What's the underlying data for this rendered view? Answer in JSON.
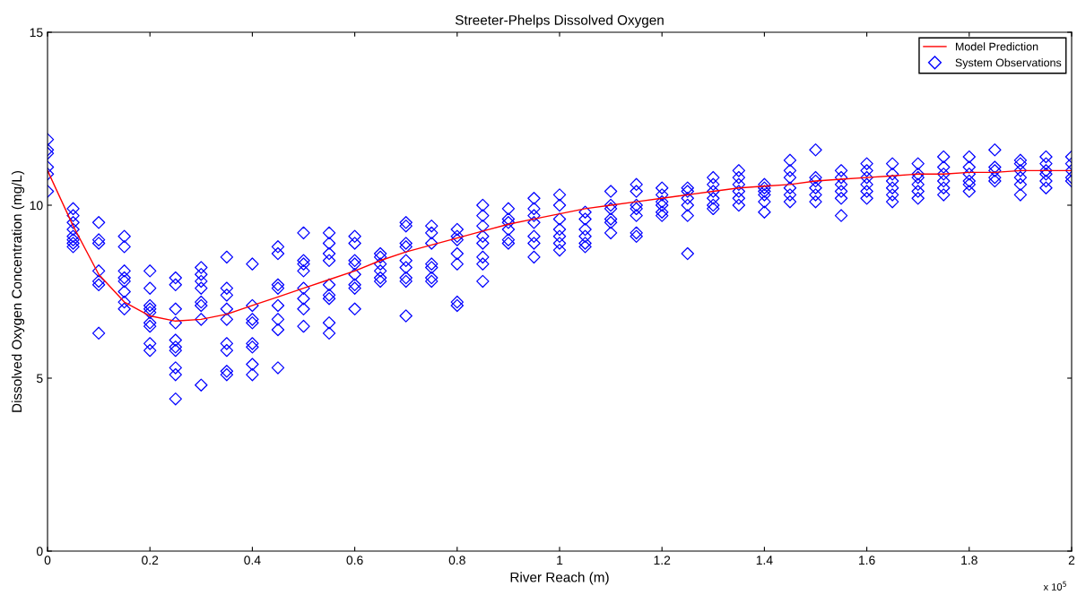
{
  "chart_data": {
    "type": "scatter",
    "title": "Streeter-Phelps Dissolved Oxygen",
    "xlabel": "River Reach (m)",
    "ylabel": "Dissolved Oxygen Concentration (mg/L)",
    "xlim": [
      0,
      2
    ],
    "ylim": [
      0,
      15
    ],
    "xticks": [
      0,
      0.2,
      0.4,
      0.6,
      0.8,
      1,
      1.2,
      1.4,
      1.6,
      1.8,
      2
    ],
    "yticks": [
      0,
      5,
      10,
      15
    ],
    "annotations": [
      "x 10$^{5}$"
    ],
    "grid": false,
    "legend": "top right",
    "series": [
      {
        "name": "Model Prediction",
        "type": "line",
        "color": "#ff0000",
        "marker": "none",
        "line_style": "solid",
        "x": [
          0,
          0.05,
          0.1,
          0.15,
          0.2,
          0.25,
          0.3,
          0.35,
          0.4,
          0.45,
          0.5,
          0.55,
          0.6,
          0.65,
          0.7,
          0.75,
          0.8,
          0.85,
          0.9,
          0.95,
          1,
          1.05,
          1.1,
          1.15,
          1.2,
          1.25,
          1.3,
          1.35,
          1.4,
          1.45,
          1.5,
          1.55,
          1.6,
          1.65,
          1.7,
          1.75,
          1.8,
          1.85,
          1.9,
          1.95,
          2
        ],
        "values": [
          11.0,
          9.4,
          8.0,
          7.2,
          6.8,
          6.65,
          6.7,
          6.85,
          7.1,
          7.35,
          7.6,
          7.85,
          8.1,
          8.4,
          8.65,
          8.85,
          9.05,
          9.25,
          9.45,
          9.6,
          9.75,
          9.9,
          10.0,
          10.1,
          10.2,
          10.3,
          10.4,
          10.5,
          10.55,
          10.6,
          10.7,
          10.75,
          10.8,
          10.85,
          10.9,
          10.9,
          10.95,
          10.95,
          11.0,
          11.0,
          11.0
        ]
      },
      {
        "name": "System Observations",
        "color": "#0000ff",
        "marker": "diamond",
        "x": [
          0,
          0,
          0,
          0,
          0,
          0,
          0.05,
          0.05,
          0.05,
          0.05,
          0.05,
          0.05,
          0.05,
          0.05,
          0.1,
          0.1,
          0.1,
          0.1,
          0.1,
          0.1,
          0.1,
          0.15,
          0.15,
          0.15,
          0.15,
          0.15,
          0.15,
          0.15,
          0.15,
          0.2,
          0.2,
          0.2,
          0.2,
          0.2,
          0.2,
          0.2,
          0.2,
          0.2,
          0.25,
          0.25,
          0.25,
          0.25,
          0.25,
          0.25,
          0.25,
          0.25,
          0.25,
          0.25,
          0.3,
          0.3,
          0.3,
          0.3,
          0.3,
          0.3,
          0.3,
          0.3,
          0.35,
          0.35,
          0.35,
          0.35,
          0.35,
          0.35,
          0.35,
          0.35,
          0.35,
          0.4,
          0.4,
          0.4,
          0.4,
          0.4,
          0.4,
          0.4,
          0.4,
          0.45,
          0.45,
          0.45,
          0.45,
          0.45,
          0.45,
          0.45,
          0.45,
          0.5,
          0.5,
          0.5,
          0.5,
          0.5,
          0.5,
          0.5,
          0.5,
          0.55,
          0.55,
          0.55,
          0.55,
          0.55,
          0.55,
          0.55,
          0.55,
          0.55,
          0.6,
          0.6,
          0.6,
          0.6,
          0.6,
          0.6,
          0.6,
          0.6,
          0.65,
          0.65,
          0.65,
          0.65,
          0.65,
          0.65,
          0.7,
          0.7,
          0.7,
          0.7,
          0.7,
          0.7,
          0.7,
          0.7,
          0.7,
          0.75,
          0.75,
          0.75,
          0.75,
          0.75,
          0.75,
          0.75,
          0.8,
          0.8,
          0.8,
          0.8,
          0.8,
          0.8,
          0.8,
          0.85,
          0.85,
          0.85,
          0.85,
          0.85,
          0.85,
          0.85,
          0.85,
          0.9,
          0.9,
          0.9,
          0.9,
          0.9,
          0.9,
          0.95,
          0.95,
          0.95,
          0.95,
          0.95,
          0.95,
          0.95,
          1,
          1,
          1,
          1,
          1,
          1,
          1,
          1.05,
          1.05,
          1.05,
          1.05,
          1.05,
          1.05,
          1.1,
          1.1,
          1.1,
          1.1,
          1.1,
          1.1,
          1.15,
          1.15,
          1.15,
          1.15,
          1.15,
          1.15,
          1.15,
          1.2,
          1.2,
          1.2,
          1.2,
          1.2,
          1.2,
          1.25,
          1.25,
          1.25,
          1.25,
          1.25,
          1.25,
          1.3,
          1.3,
          1.3,
          1.3,
          1.3,
          1.3,
          1.35,
          1.35,
          1.35,
          1.35,
          1.35,
          1.35,
          1.4,
          1.4,
          1.4,
          1.4,
          1.4,
          1.4,
          1.45,
          1.45,
          1.45,
          1.45,
          1.45,
          1.45,
          1.5,
          1.5,
          1.5,
          1.5,
          1.5,
          1.5,
          1.55,
          1.55,
          1.55,
          1.55,
          1.55,
          1.55,
          1.6,
          1.6,
          1.6,
          1.6,
          1.6,
          1.6,
          1.65,
          1.65,
          1.65,
          1.65,
          1.65,
          1.65,
          1.7,
          1.7,
          1.7,
          1.7,
          1.7,
          1.7,
          1.75,
          1.75,
          1.75,
          1.75,
          1.75,
          1.75,
          1.8,
          1.8,
          1.8,
          1.8,
          1.8,
          1.8,
          1.85,
          1.85,
          1.85,
          1.85,
          1.85,
          1.9,
          1.9,
          1.9,
          1.9,
          1.9,
          1.9,
          1.95,
          1.95,
          1.95,
          1.95,
          1.95,
          1.95,
          2,
          2,
          2,
          2,
          2
        ],
        "values": [
          11.9,
          11.6,
          11.5,
          11.1,
          10.9,
          10.4,
          9.9,
          9.7,
          9.5,
          9.3,
          9.1,
          8.9,
          8.8,
          9.0,
          9.5,
          9.0,
          8.9,
          8.1,
          7.8,
          7.7,
          6.3,
          9.1,
          8.8,
          8.1,
          7.9,
          7.8,
          7.5,
          7.2,
          7.0,
          8.1,
          7.6,
          7.1,
          7.0,
          6.9,
          6.6,
          6.5,
          6.0,
          5.8,
          7.9,
          7.7,
          7.0,
          6.6,
          6.1,
          5.9,
          5.8,
          5.3,
          5.1,
          4.4,
          8.2,
          8.0,
          7.8,
          7.6,
          7.2,
          7.1,
          6.7,
          4.8,
          8.5,
          7.6,
          7.4,
          7.0,
          6.7,
          6.0,
          5.8,
          5.2,
          5.1,
          8.3,
          7.1,
          6.7,
          6.6,
          6.0,
          5.9,
          5.4,
          5.1,
          8.8,
          8.6,
          7.7,
          7.6,
          7.1,
          6.7,
          6.4,
          5.3,
          9.2,
          8.4,
          8.3,
          8.1,
          7.6,
          7.3,
          7.0,
          6.5,
          9.2,
          8.9,
          8.6,
          8.4,
          7.7,
          7.4,
          7.3,
          6.6,
          6.3,
          9.1,
          8.9,
          8.4,
          8.3,
          8.0,
          7.7,
          7.6,
          7.0,
          8.6,
          8.5,
          8.3,
          8.1,
          7.9,
          7.8,
          9.5,
          9.4,
          8.9,
          8.8,
          8.4,
          8.2,
          7.9,
          7.8,
          6.8,
          9.4,
          9.2,
          8.9,
          8.3,
          8.2,
          7.9,
          7.8,
          9.3,
          9.1,
          9.0,
          8.6,
          8.3,
          7.1,
          7.2,
          10.0,
          9.7,
          9.4,
          9.1,
          8.9,
          8.5,
          8.3,
          7.8,
          9.9,
          9.6,
          9.5,
          9.3,
          9.0,
          8.9,
          10.2,
          9.9,
          9.7,
          9.5,
          9.1,
          8.9,
          8.5,
          10.3,
          10.0,
          9.6,
          9.3,
          9.1,
          8.9,
          8.7,
          9.8,
          9.6,
          9.3,
          9.1,
          8.9,
          8.8,
          10.4,
          10.0,
          9.9,
          9.6,
          9.5,
          9.2,
          10.6,
          10.4,
          10.0,
          9.9,
          9.7,
          9.2,
          9.1,
          10.5,
          10.3,
          10.1,
          10.0,
          9.8,
          9.7,
          10.5,
          10.4,
          10.2,
          10.0,
          9.7,
          8.6,
          10.8,
          10.6,
          10.4,
          10.2,
          10.0,
          9.9,
          11.0,
          10.8,
          10.6,
          10.4,
          10.2,
          10.0,
          10.6,
          10.5,
          10.4,
          10.3,
          10.1,
          9.8,
          11.3,
          11.0,
          10.8,
          10.5,
          10.3,
          10.1,
          11.6,
          10.8,
          10.7,
          10.5,
          10.3,
          10.1,
          11.0,
          10.8,
          10.6,
          10.4,
          10.2,
          9.7,
          11.2,
          11.0,
          10.8,
          10.6,
          10.4,
          10.2,
          11.2,
          10.9,
          10.7,
          10.5,
          10.3,
          10.1,
          11.2,
          10.9,
          10.8,
          10.6,
          10.4,
          10.2,
          11.4,
          11.1,
          10.9,
          10.7,
          10.5,
          10.3,
          11.4,
          11.1,
          10.9,
          10.7,
          10.6,
          10.4,
          11.6,
          11.1,
          11.0,
          10.8,
          10.7,
          11.3,
          11.2,
          11.0,
          10.8,
          10.6,
          10.3,
          11.4,
          11.2,
          11.0,
          10.9,
          10.7,
          10.5,
          11.4,
          11.2,
          11.0,
          10.8,
          10.7
        ]
      }
    ]
  }
}
